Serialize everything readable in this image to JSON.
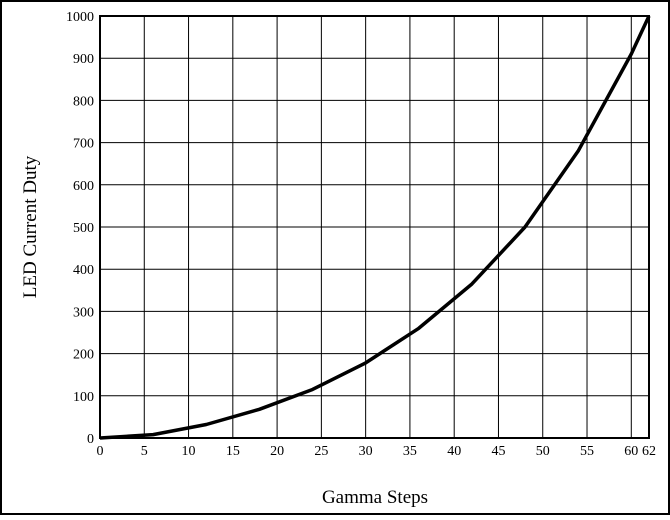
{
  "chart_data": {
    "type": "line",
    "x_label": "Gamma Steps",
    "y_label": "LED Current Duty",
    "x": [
      0,
      6,
      12,
      18,
      24,
      30,
      36,
      42,
      48,
      54,
      60,
      62
    ],
    "values": [
      0,
      8,
      32,
      68,
      115,
      178,
      260,
      365,
      500,
      680,
      910,
      1000
    ],
    "color": "#000000",
    "xlim": [
      0,
      62
    ],
    "xticks": [
      0,
      5,
      10,
      15,
      20,
      25,
      30,
      35,
      40,
      45,
      50,
      55,
      60,
      62
    ],
    "ylim": [
      0,
      1000
    ],
    "yticks": [
      0,
      100,
      200,
      300,
      400,
      500,
      600,
      700,
      800,
      900,
      1000
    ],
    "grid": true
  }
}
